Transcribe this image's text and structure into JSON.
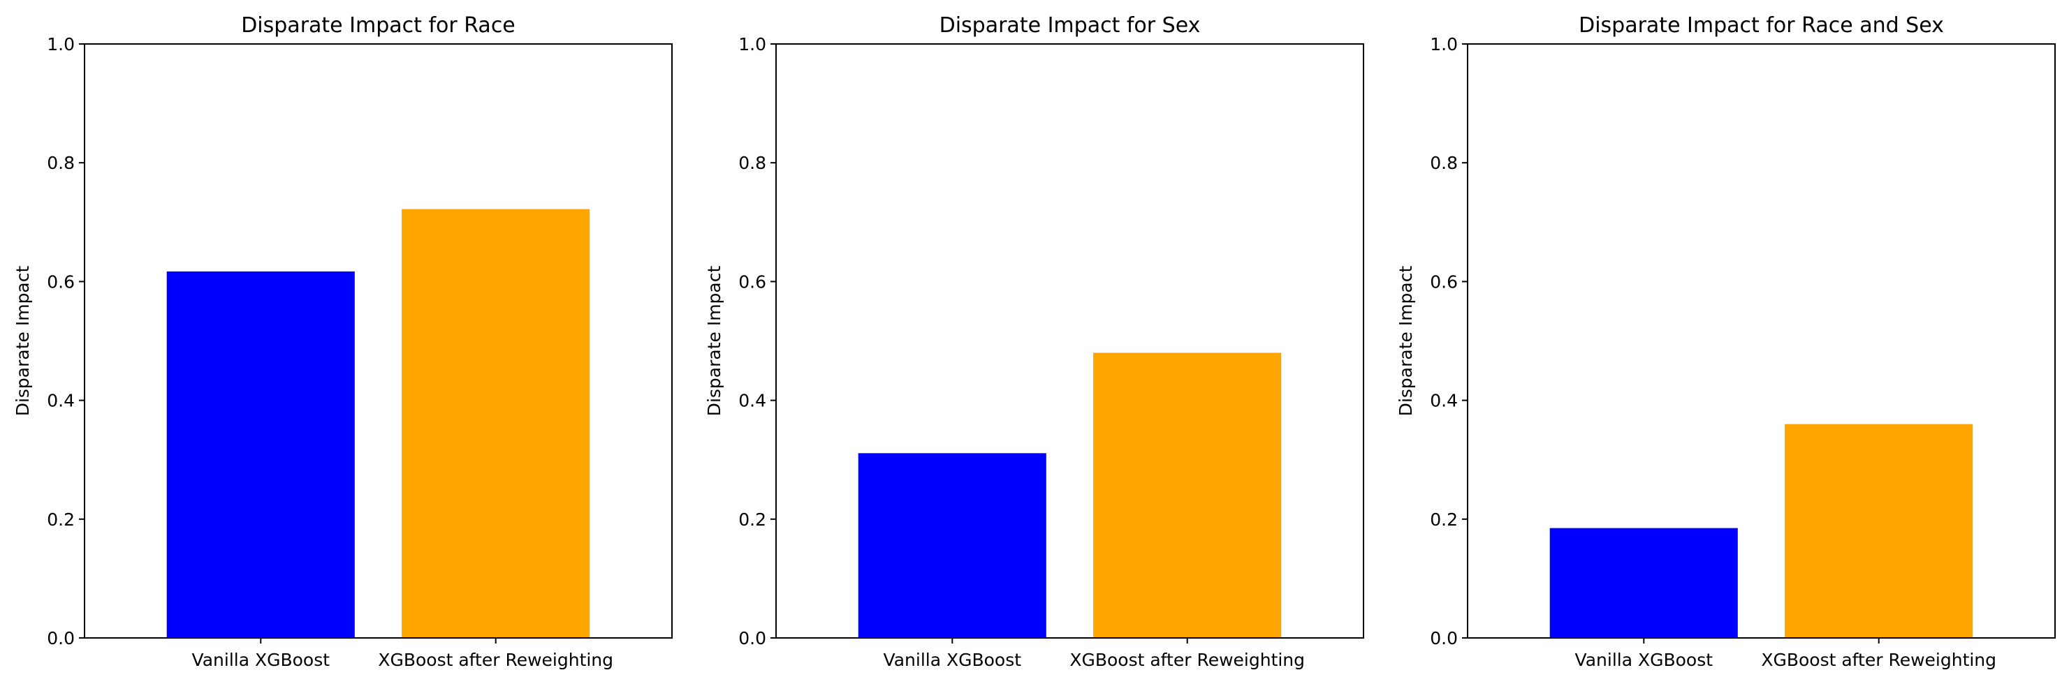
{
  "chart_data": [
    {
      "type": "bar",
      "title": "Disparate Impact for Race",
      "xlabel": "",
      "ylabel": "Disparate Impact",
      "ylim": [
        0,
        1.0
      ],
      "yticks": [
        "0.0",
        "0.2",
        "0.4",
        "0.6",
        "0.8",
        "1.0"
      ],
      "categories": [
        "Vanilla XGBoost",
        "XGBoost after Reweighting"
      ],
      "values": [
        0.617,
        0.722
      ],
      "colors": [
        "#0000ff",
        "#ffa500"
      ]
    },
    {
      "type": "bar",
      "title": "Disparate Impact for Sex",
      "xlabel": "",
      "ylabel": "Disparate Impact",
      "ylim": [
        0,
        1.0
      ],
      "yticks": [
        "0.0",
        "0.2",
        "0.4",
        "0.6",
        "0.8",
        "1.0"
      ],
      "categories": [
        "Vanilla XGBoost",
        "XGBoost after Reweighting"
      ],
      "values": [
        0.311,
        0.48
      ],
      "colors": [
        "#0000ff",
        "#ffa500"
      ]
    },
    {
      "type": "bar",
      "title": "Disparate Impact for Race and Sex",
      "xlabel": "",
      "ylabel": "Disparate Impact",
      "ylim": [
        0,
        1.0
      ],
      "yticks": [
        "0.0",
        "0.2",
        "0.4",
        "0.6",
        "0.8",
        "1.0"
      ],
      "categories": [
        "Vanilla XGBoost",
        "XGBoost after Reweighting"
      ],
      "values": [
        0.185,
        0.36
      ],
      "colors": [
        "#0000ff",
        "#ffa500"
      ]
    }
  ]
}
